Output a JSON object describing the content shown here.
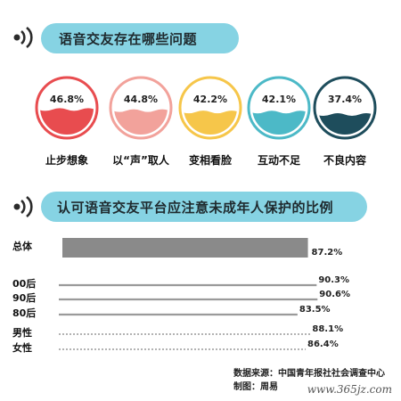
{
  "section1": {
    "title": "语音交友存在哪些问题"
  },
  "section2": {
    "title": "认可语音交友平台应注意未成年人保护的比例"
  },
  "colors": {
    "banner": "#86d3e3",
    "gauges": [
      "#e84c4f",
      "#f2a29b",
      "#f6c64a",
      "#4cb9c7",
      "#1e4d5c"
    ],
    "bar_fill": "#8a8a8a",
    "bar_line": "#9a9a9a"
  },
  "chart_data": [
    {
      "type": "pie",
      "categories": [
        "止步想象",
        "以“声”取人",
        "变相看脸",
        "互动不足",
        "不良内容"
      ],
      "values": [
        46.8,
        44.8,
        42.2,
        42.1,
        37.4
      ],
      "labels": [
        "46.8%",
        "44.8%",
        "42.2%",
        "42.1%",
        "37.4%"
      ]
    },
    {
      "type": "bar",
      "orientation": "horizontal",
      "categories": [
        "总体",
        "00后",
        "90后",
        "80后",
        "男性",
        "女性"
      ],
      "values": [
        87.2,
        90.3,
        90.6,
        83.5,
        88.1,
        86.4
      ],
      "labels": [
        "87.2%",
        "90.3%",
        "90.6%",
        "83.5%",
        "88.1%",
        "86.4%"
      ],
      "xlim": [
        0,
        100
      ]
    }
  ],
  "footer": {
    "source": "数据来源：中国青年报社社会调查中心",
    "credit": "制图：周易"
  },
  "watermark": "www.365jz.com"
}
